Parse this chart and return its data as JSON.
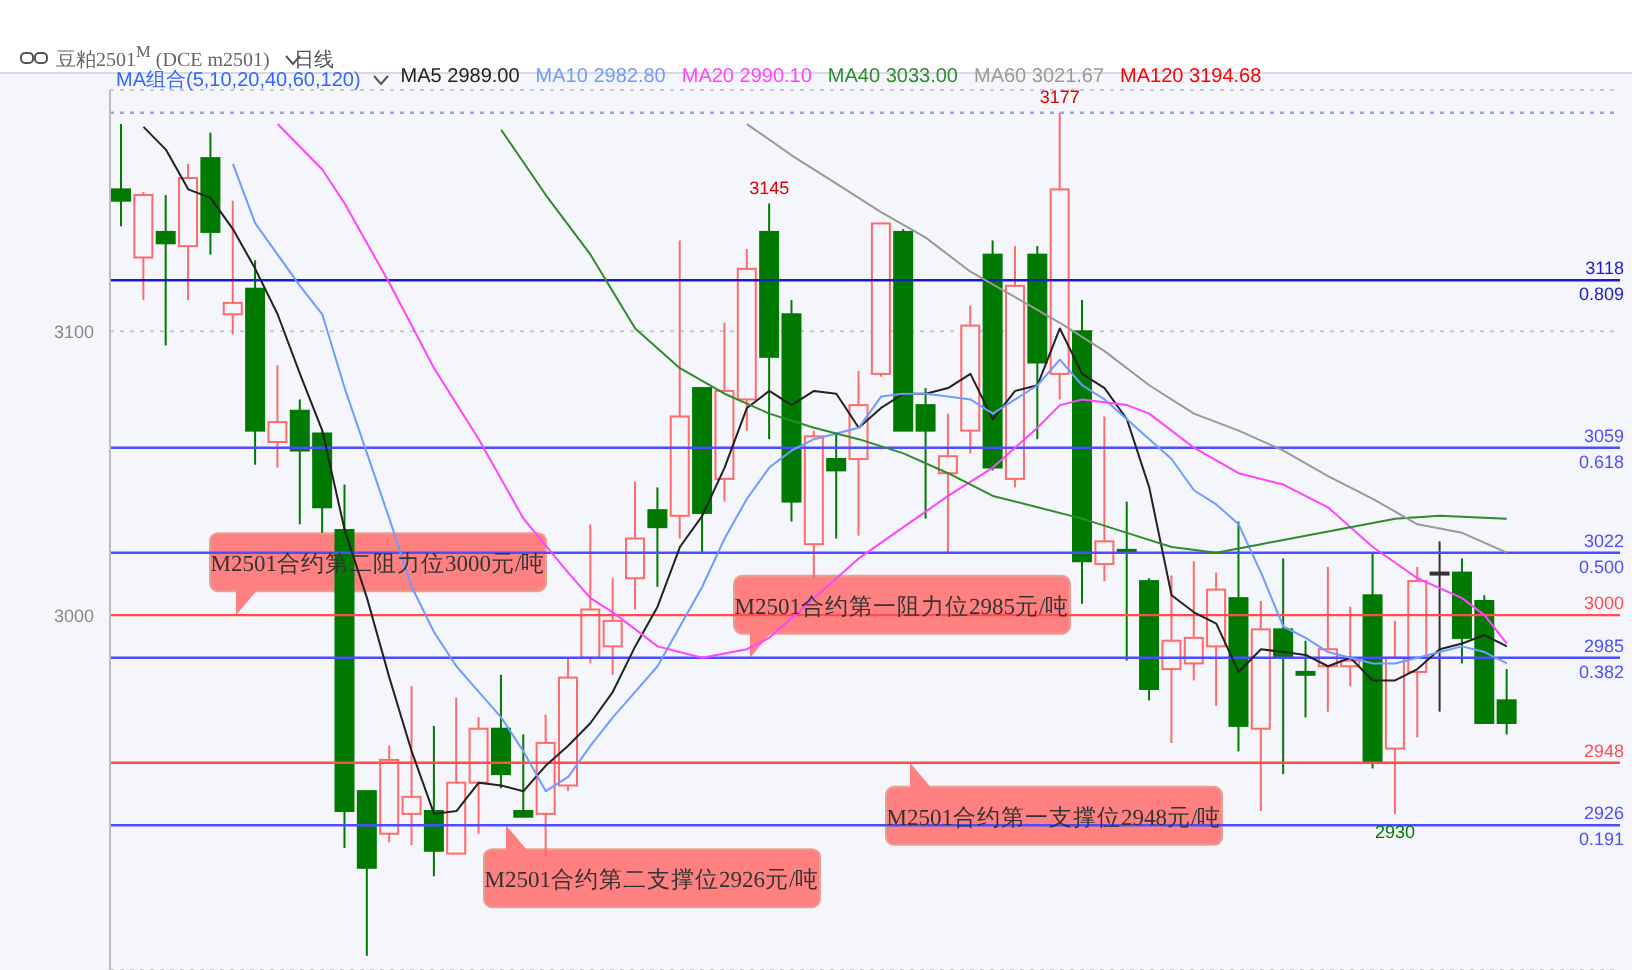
{
  "chart_data": {
    "type": "candlestick",
    "title": "豆粕2501$^{M}$ (DCE m2501)",
    "subtitle": "日线",
    "legend_title": "MA组合(5,10,20,40,60,120)",
    "legend": "top",
    "marker": "none",
    "grid": "y",
    "categories": [
      null,
      null,
      null,
      null,
      null,
      null,
      null,
      null,
      null,
      null,
      null,
      null,
      null,
      null,
      null,
      null,
      null,
      null,
      null,
      null,
      null,
      null,
      null,
      null,
      null,
      null,
      null,
      null,
      null,
      null,
      null,
      null,
      null,
      null,
      null,
      null,
      null,
      null,
      null,
      null,
      null,
      null,
      null,
      null,
      null,
      null,
      null,
      null,
      null,
      null,
      null,
      null,
      null,
      null,
      null,
      null,
      null,
      null,
      null,
      null,
      null,
      null,
      null
    ],
    "ohlc": [
      [
        3150,
        3173,
        3137,
        3146
      ],
      [
        3126,
        3149,
        3111,
        3148
      ],
      [
        3135,
        3148,
        3095,
        3131
      ],
      [
        3130,
        3159,
        3111,
        3154
      ],
      [
        3161,
        3170,
        3127,
        3135
      ],
      [
        3106,
        3146,
        3099,
        3110
      ],
      [
        3115,
        3125,
        3053,
        3065
      ],
      [
        3061,
        3088,
        3052,
        3068
      ],
      [
        3072,
        3076,
        3032,
        3058
      ],
      [
        3064,
        3065,
        3029,
        3038
      ],
      [
        3030,
        3046,
        2918,
        2931
      ],
      [
        2938,
        2938,
        2880,
        2911
      ],
      [
        2923,
        2954,
        2920,
        2949
      ],
      [
        2930,
        2975,
        2919,
        2936
      ],
      [
        2931,
        2961,
        2908,
        2917
      ],
      [
        2916,
        2971,
        2916,
        2941
      ],
      [
        2941,
        2964,
        2923,
        2960
      ],
      [
        2960,
        2979,
        2939,
        2944
      ],
      [
        2931,
        2958,
        2929,
        2929
      ],
      [
        2930,
        2965,
        2915,
        2955
      ],
      [
        2940,
        2985,
        2938,
        2978
      ],
      [
        2985,
        3032,
        2983,
        3002
      ],
      [
        2989,
        3013,
        2979,
        2998
      ],
      [
        3013,
        3047,
        3002,
        3027
      ],
      [
        3037,
        3045,
        3010,
        3031
      ],
      [
        3035,
        3132,
        3027,
        3070
      ],
      [
        3080,
        3080,
        3022,
        3036
      ],
      [
        3048,
        3103,
        3040,
        3079
      ],
      [
        3076,
        3129,
        3065,
        3122
      ],
      [
        3135,
        3145,
        3062,
        3091
      ],
      [
        3106,
        3111,
        3033,
        3040
      ],
      [
        3025,
        3065,
        3013,
        3063
      ],
      [
        3055,
        3064,
        3027,
        3051
      ],
      [
        3055,
        3086,
        3028,
        3074
      ],
      [
        3085,
        3138,
        3084,
        3138
      ],
      [
        3135,
        3136,
        3065,
        3065
      ],
      [
        3074,
        3080,
        3034,
        3065
      ],
      [
        3050,
        3071,
        3022,
        3056
      ],
      [
        3065,
        3109,
        3057,
        3102
      ],
      [
        3127,
        3132,
        3051,
        3052
      ],
      [
        3048,
        3130,
        3045,
        3116
      ],
      [
        3127,
        3130,
        3062,
        3089
      ],
      [
        3085,
        3177,
        3076,
        3150
      ],
      [
        3100,
        3111,
        3004,
        3019
      ],
      [
        3018,
        3070,
        3012,
        3026
      ],
      [
        3023,
        3040,
        2984,
        3022
      ],
      [
        3012,
        3013,
        2970,
        2974
      ],
      [
        2981,
        3014,
        2955,
        2991
      ],
      [
        2983,
        3019,
        2977,
        2992
      ],
      [
        2989,
        3015,
        2968,
        3009
      ],
      [
        3006,
        3033,
        2952,
        2961
      ],
      [
        2960,
        3005,
        2931,
        2995
      ],
      [
        2995,
        3020,
        2944,
        2985
      ],
      [
        2980,
        2991,
        2964,
        2979
      ],
      [
        2982,
        3017,
        2966,
        2988
      ],
      [
        2982,
        3003,
        2975,
        2984
      ],
      [
        3007,
        3022,
        2946,
        2948
      ],
      [
        2953,
        2998,
        2930,
        2985
      ],
      [
        2980,
        3017,
        2957,
        3012
      ],
      [
        3015,
        3026,
        2966,
        3015
      ],
      [
        3015,
        3020,
        2983,
        2992
      ],
      [
        3005,
        3007,
        2962,
        2962
      ],
      [
        2970,
        2981,
        2958,
        2962
      ]
    ],
    "colors": [
      "#007a00",
      "#ff6a6a",
      "#007a00",
      "#ff6a6a",
      "#007a00",
      "#ff6a6a",
      "#007a00",
      "#ff6a6a",
      "#007a00",
      "#007a00",
      "#007a00",
      "#007a00",
      "#ff6a6a",
      "#ff6a6a",
      "#007a00",
      "#ff6a6a",
      "#ff6a6a",
      "#007a00",
      "#007a00",
      "#ff6a6a",
      "#ff6a6a",
      "#ff6a6a",
      "#ff6a6a",
      "#ff6a6a",
      "#007a00",
      "#ff6a6a",
      "#007a00",
      "#ff6a6a",
      "#ff6a6a",
      "#007a00",
      "#007a00",
      "#ff6a6a",
      "#007a00",
      "#ff6a6a",
      "#ff6a6a",
      "#007a00",
      "#007a00",
      "#ff6a6a",
      "#ff6a6a",
      "#007a00",
      "#ff6a6a",
      "#007a00",
      "#ff6a6a",
      "#007a00",
      "#ff6a6a",
      "#007a00",
      "#007a00",
      "#ff6a6a",
      "#ff6a6a",
      "#ff6a6a",
      "#007a00",
      "#ff6a6a",
      "#007a00",
      "#007a00",
      "#ff6a6a",
      "#ff6a6a",
      "#007a00",
      "#ff6a6a",
      "#ff6a6a",
      "#333333",
      "#007a00",
      "#007a00",
      "#007a00"
    ],
    "series": [
      {
        "name": "MA5 2989.00",
        "type": "line",
        "color": "#222222",
        "values": [
          null,
          3172,
          3164,
          3150,
          3147,
          3136,
          3122,
          3106,
          3085,
          3065,
          3030,
          3006,
          2978,
          2952,
          2930,
          2931,
          2941,
          2940,
          2938,
          2947,
          2954,
          2962,
          2973,
          2989,
          3003,
          3024,
          3035,
          3052,
          3073,
          3079,
          3074,
          3079,
          3078,
          3066,
          3073,
          3078,
          3078,
          3080,
          3085,
          3069,
          3079,
          3081,
          3101,
          3085,
          3080,
          3069,
          3045,
          3007,
          3001,
          2997,
          2980,
          2988,
          2987,
          2986,
          2982,
          2985,
          2977,
          2977,
          2981,
          2988,
          2990,
          2993,
          2989
        ]
      },
      {
        "name": "MA10 2982.80",
        "type": "line",
        "color": "#6f9bff",
        "values": [
          null,
          null,
          null,
          null,
          null,
          3159,
          3138,
          3127,
          3116,
          3106,
          3080,
          3057,
          3034,
          3010,
          2994,
          2982,
          2973,
          2964,
          2952,
          2938,
          2943,
          2954,
          2964,
          2973,
          2982,
          2996,
          3010,
          3027,
          3041,
          3052,
          3058,
          3062,
          3064,
          3066,
          3077,
          3078,
          3078,
          3077,
          3076,
          3071,
          3076,
          3081,
          3090,
          3081,
          3076,
          3069,
          3062,
          3055,
          3044,
          3039,
          3032,
          3015,
          2996,
          2992,
          2987,
          2985,
          2983,
          2983,
          2985,
          2987,
          2989,
          2987,
          2983
        ]
      },
      {
        "name": "MA20 2990.10",
        "type": "line",
        "color": "#ff44ff",
        "values": [
          null,
          null,
          null,
          null,
          null,
          null,
          null,
          3173,
          null,
          3157,
          3145,
          null,
          3117,
          null,
          3087,
          null,
          3062,
          null,
          3034,
          null,
          3015,
          3006,
          3001,
          null,
          2989,
          null,
          2985,
          null,
          2988,
          2992,
          null,
          3006,
          null,
          3020,
          null,
          3031,
          null,
          3042,
          null,
          3052,
          null,
          3066,
          3074,
          3076,
          null,
          3074,
          3071,
          null,
          3059,
          null,
          3050,
          null,
          3046,
          null,
          3038,
          null,
          3024,
          null,
          3013,
          null,
          3006,
          3000,
          2990
        ]
      },
      {
        "name": "MA40 3033.00",
        "type": "line",
        "color": "#2e8b2e",
        "values": [
          null,
          null,
          null,
          null,
          null,
          null,
          null,
          null,
          null,
          null,
          null,
          null,
          null,
          null,
          null,
          null,
          null,
          3171,
          null,
          3148,
          null,
          3127,
          null,
          3101,
          null,
          3087,
          null,
          3078,
          null,
          3071,
          null,
          3066,
          null,
          3062,
          null,
          3057,
          null,
          3050,
          null,
          3042,
          null,
          3038,
          null,
          3034,
          null,
          3029,
          null,
          3024,
          null,
          3022,
          null,
          3025,
          null,
          3028,
          null,
          3031,
          null,
          3034,
          null,
          3035,
          null,
          null,
          3034
        ]
      },
      {
        "name": "MA60 3021.67",
        "type": "line",
        "color": "#999999",
        "values": [
          null,
          null,
          null,
          null,
          null,
          null,
          null,
          null,
          null,
          null,
          null,
          null,
          null,
          null,
          null,
          null,
          null,
          null,
          null,
          null,
          null,
          null,
          null,
          null,
          null,
          null,
          null,
          null,
          3173,
          null,
          3162,
          null,
          3152,
          null,
          3142,
          null,
          3133,
          null,
          3121,
          null,
          3112,
          null,
          3103,
          null,
          3093,
          null,
          3081,
          null,
          3071,
          null,
          3065,
          null,
          3058,
          null,
          3049,
          null,
          3041,
          null,
          3032,
          null,
          3029,
          null,
          3022
        ]
      },
      {
        "name": "MA120 3194.68",
        "type": "line",
        "color": "#ff0000",
        "values": [
          null,
          null,
          null,
          null,
          null,
          null,
          null,
          null,
          null,
          null,
          null,
          null,
          null,
          null,
          null,
          null,
          null,
          null,
          null,
          null,
          null,
          null,
          null,
          null,
          null,
          null,
          null,
          null,
          null,
          null,
          null,
          null,
          null,
          null,
          null,
          null,
          null,
          null,
          null,
          null,
          null,
          null,
          null,
          null,
          null,
          null,
          null,
          null,
          null,
          null,
          null,
          null,
          null,
          null,
          null,
          null,
          null,
          null,
          null,
          null,
          null,
          null,
          null
        ]
      }
    ],
    "ylim": [
      2875,
      3185
    ],
    "yticks": [
      3000,
      3100
    ],
    "ref_lines": [
      {
        "axis": "y",
        "value": 3177,
        "color": "#9a9aff",
        "line_style": "dotted"
      },
      {
        "axis": "y",
        "value": 3118,
        "label": "3118\n0.809",
        "color": "#1a1acc",
        "line_style": "solid"
      },
      {
        "axis": "y",
        "value": 3059,
        "label": "3059\n0.618",
        "color": "#4d4dff",
        "line_style": "solid"
      },
      {
        "axis": "y",
        "value": 3022,
        "label": "3022\n0.500",
        "color": "#4d4dff",
        "line_style": "solid"
      },
      {
        "axis": "y",
        "value": 3000,
        "label": "3000",
        "color": "#ff4d4d",
        "line_style": "solid"
      },
      {
        "axis": "y",
        "value": 2985,
        "label": "2985\n0.382",
        "color": "#4d4dff",
        "line_style": "solid"
      },
      {
        "axis": "y",
        "value": 2948,
        "label": "2948",
        "color": "#ff4d4d",
        "line_style": "solid"
      },
      {
        "axis": "y",
        "value": 2926,
        "label": "2926\n0.191",
        "color": "#4d4dff",
        "line_style": "solid"
      }
    ],
    "annotations": [
      {
        "text": "3177",
        "y": 3177
      },
      {
        "text": "3145",
        "y": 3145
      },
      {
        "text": "2930",
        "y": 2930
      },
      {
        "text": "M2501合约第二阻力位3000元/吨",
        "y": 3000
      },
      {
        "text": "M2501合约第一阻力位2985元/吨",
        "y": 2985
      },
      {
        "text": "M2501合约第一支撑位2948元/吨",
        "y": 2948
      },
      {
        "text": "M2501合约第二支撑位2926元/吨",
        "y": 2926
      }
    ]
  }
}
